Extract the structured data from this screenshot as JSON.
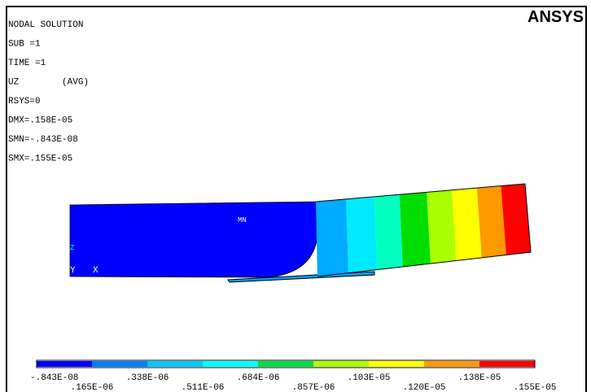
{
  "info": {
    "lines": [
      "NODAL SOLUTION",
      "SUB =1",
      "TIME =1",
      "UZ        (AVG)",
      "RSYS=0",
      "DMX=.158E-05",
      "SMN=-.843E-08",
      "SMX=.155E-05"
    ]
  },
  "logo": "ANSYS",
  "model": {
    "min_label": "MN",
    "axes": [
      "Y",
      "X",
      "Z"
    ]
  },
  "legend": {
    "labels": [
      "-.843E-08",
      ".165E-06",
      ".338E-06",
      ".511E-06",
      ".684E-06",
      ".857E-06",
      ".103E-05",
      ".120E-05",
      ".138E-05",
      ".155E-05"
    ]
  }
}
